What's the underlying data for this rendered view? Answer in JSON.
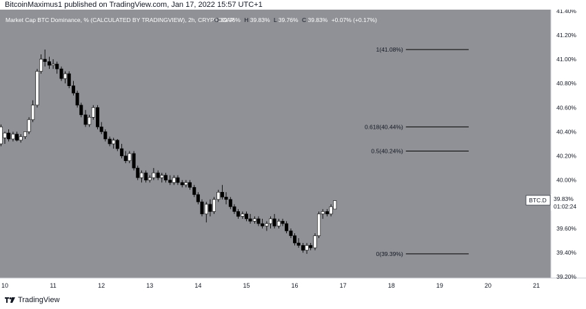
{
  "header": {
    "publish_line": "BitcoinMaximus1 published on TradingView.com, Jan 17, 2022 15:57 UTC+1",
    "symbol_title": "Market Cap BTC Dominance, % (CALCULATED BY TRADINGVIEW), 2h, CRYPTOCAP",
    "ohlc": [
      {
        "label": "O",
        "value": "39.76%"
      },
      {
        "label": "H",
        "value": "39.83%"
      },
      {
        "label": "L",
        "value": "39.76%"
      },
      {
        "label": "C",
        "value": "39.83%"
      }
    ],
    "change": "+0.07% (+0.17%)"
  },
  "footer": {
    "logo_text": "TradingView"
  },
  "price_tag": {
    "label": "BTC.D",
    "price": "39.83%",
    "countdown": "01:02:24"
  },
  "colors": {
    "background": "#8f9196",
    "axis_background": "#ffffff",
    "candle_up": "#ffffff",
    "candle_down": "#000000",
    "fib_line": "#000000",
    "axis_text": "#131722",
    "title_text": "#ffffff"
  },
  "chart_data": {
    "type": "candlestick",
    "x_tick_labels": [
      "10",
      "11",
      "12",
      "13",
      "14",
      "15",
      "16",
      "17",
      "18",
      "19",
      "20",
      "21"
    ],
    "y_tick_labels": [
      "39.20%",
      "39.40%",
      "39.60%",
      "39.80%",
      "40.00%",
      "40.20%",
      "40.40%",
      "40.60%",
      "40.80%",
      "41.00%",
      "41.20%",
      "41.40%"
    ],
    "ylim": [
      39.19,
      41.41
    ],
    "xlim": [
      9.9,
      21.3
    ],
    "fib_levels": [
      {
        "label": "1(41.08%)",
        "value": 41.08
      },
      {
        "label": "0.618(40.44%)",
        "value": 40.44
      },
      {
        "label": "0.5(40.24%)",
        "value": 40.24
      },
      {
        "label": "0(39.39%)",
        "value": 39.39
      }
    ],
    "fib_x_range": [
      18.3,
      19.6
    ],
    "candles": [
      {
        "x": 9.92,
        "o": 40.3,
        "h": 40.46,
        "l": 40.28,
        "c": 40.44
      },
      {
        "x": 10.0,
        "o": 40.35,
        "h": 40.4,
        "l": 40.3,
        "c": 40.39
      },
      {
        "x": 10.08,
        "o": 40.39,
        "h": 40.42,
        "l": 40.32,
        "c": 40.34
      },
      {
        "x": 10.17,
        "o": 40.34,
        "h": 40.4,
        "l": 40.32,
        "c": 40.38
      },
      {
        "x": 10.25,
        "o": 40.38,
        "h": 40.4,
        "l": 40.32,
        "c": 40.33
      },
      {
        "x": 10.33,
        "o": 40.33,
        "h": 40.38,
        "l": 40.31,
        "c": 40.36
      },
      {
        "x": 10.42,
        "o": 40.36,
        "h": 40.4,
        "l": 40.34,
        "c": 40.4
      },
      {
        "x": 10.5,
        "o": 40.4,
        "h": 40.52,
        "l": 40.38,
        "c": 40.5
      },
      {
        "x": 10.58,
        "o": 40.5,
        "h": 40.66,
        "l": 40.48,
        "c": 40.62
      },
      {
        "x": 10.67,
        "o": 40.62,
        "h": 40.92,
        "l": 40.6,
        "c": 40.9
      },
      {
        "x": 10.75,
        "o": 40.9,
        "h": 41.04,
        "l": 40.88,
        "c": 41.0
      },
      {
        "x": 10.83,
        "o": 41.0,
        "h": 41.08,
        "l": 40.94,
        "c": 40.98
      },
      {
        "x": 10.92,
        "o": 40.98,
        "h": 41.02,
        "l": 40.92,
        "c": 40.95
      },
      {
        "x": 11.0,
        "o": 40.95,
        "h": 41.0,
        "l": 40.92,
        "c": 40.96
      },
      {
        "x": 11.08,
        "o": 40.96,
        "h": 40.98,
        "l": 40.88,
        "c": 40.92
      },
      {
        "x": 11.17,
        "o": 40.92,
        "h": 40.94,
        "l": 40.82,
        "c": 40.84
      },
      {
        "x": 11.25,
        "o": 40.84,
        "h": 40.9,
        "l": 40.8,
        "c": 40.88
      },
      {
        "x": 11.33,
        "o": 40.88,
        "h": 40.9,
        "l": 40.76,
        "c": 40.78
      },
      {
        "x": 11.42,
        "o": 40.78,
        "h": 40.82,
        "l": 40.7,
        "c": 40.72
      },
      {
        "x": 11.5,
        "o": 40.72,
        "h": 40.74,
        "l": 40.6,
        "c": 40.62
      },
      {
        "x": 11.58,
        "o": 40.62,
        "h": 40.64,
        "l": 40.52,
        "c": 40.54
      },
      {
        "x": 11.67,
        "o": 40.54,
        "h": 40.58,
        "l": 40.44,
        "c": 40.46
      },
      {
        "x": 11.75,
        "o": 40.46,
        "h": 40.54,
        "l": 40.44,
        "c": 40.52
      },
      {
        "x": 11.83,
        "o": 40.52,
        "h": 40.62,
        "l": 40.5,
        "c": 40.6
      },
      {
        "x": 11.92,
        "o": 40.6,
        "h": 40.62,
        "l": 40.42,
        "c": 40.44
      },
      {
        "x": 12.0,
        "o": 40.44,
        "h": 40.48,
        "l": 40.38,
        "c": 40.4
      },
      {
        "x": 12.08,
        "o": 40.4,
        "h": 40.42,
        "l": 40.32,
        "c": 40.34
      },
      {
        "x": 12.17,
        "o": 40.34,
        "h": 40.36,
        "l": 40.28,
        "c": 40.3
      },
      {
        "x": 12.25,
        "o": 40.3,
        "h": 40.35,
        "l": 40.26,
        "c": 40.33
      },
      {
        "x": 12.33,
        "o": 40.33,
        "h": 40.34,
        "l": 40.24,
        "c": 40.26
      },
      {
        "x": 12.42,
        "o": 40.26,
        "h": 40.3,
        "l": 40.18,
        "c": 40.2
      },
      {
        "x": 12.5,
        "o": 40.2,
        "h": 40.24,
        "l": 40.14,
        "c": 40.16
      },
      {
        "x": 12.58,
        "o": 40.16,
        "h": 40.24,
        "l": 40.14,
        "c": 40.22
      },
      {
        "x": 12.67,
        "o": 40.22,
        "h": 40.24,
        "l": 40.08,
        "c": 40.1
      },
      {
        "x": 12.75,
        "o": 40.1,
        "h": 40.12,
        "l": 40.0,
        "c": 40.02
      },
      {
        "x": 12.83,
        "o": 40.02,
        "h": 40.08,
        "l": 39.98,
        "c": 40.06
      },
      {
        "x": 12.92,
        "o": 40.06,
        "h": 40.08,
        "l": 39.98,
        "c": 40.0
      },
      {
        "x": 13.0,
        "o": 40.0,
        "h": 40.04,
        "l": 39.98,
        "c": 40.02
      },
      {
        "x": 13.08,
        "o": 40.02,
        "h": 40.1,
        "l": 40.0,
        "c": 40.06
      },
      {
        "x": 13.17,
        "o": 40.06,
        "h": 40.08,
        "l": 40.0,
        "c": 40.02
      },
      {
        "x": 13.25,
        "o": 40.02,
        "h": 40.06,
        "l": 39.98,
        "c": 40.04
      },
      {
        "x": 13.33,
        "o": 40.04,
        "h": 40.06,
        "l": 39.98,
        "c": 40.0
      },
      {
        "x": 13.42,
        "o": 40.0,
        "h": 40.04,
        "l": 39.96,
        "c": 39.98
      },
      {
        "x": 13.5,
        "o": 39.98,
        "h": 40.04,
        "l": 39.96,
        "c": 40.02
      },
      {
        "x": 13.58,
        "o": 40.02,
        "h": 40.04,
        "l": 39.96,
        "c": 39.98
      },
      {
        "x": 13.67,
        "o": 39.98,
        "h": 40.0,
        "l": 39.94,
        "c": 39.96
      },
      {
        "x": 13.75,
        "o": 39.96,
        "h": 40.0,
        "l": 39.94,
        "c": 39.98
      },
      {
        "x": 13.83,
        "o": 39.98,
        "h": 40.0,
        "l": 39.92,
        "c": 39.94
      },
      {
        "x": 13.92,
        "o": 39.94,
        "h": 39.96,
        "l": 39.86,
        "c": 39.88
      },
      {
        "x": 14.0,
        "o": 39.88,
        "h": 39.9,
        "l": 39.8,
        "c": 39.82
      },
      {
        "x": 14.08,
        "o": 39.82,
        "h": 39.84,
        "l": 39.7,
        "c": 39.72
      },
      {
        "x": 14.17,
        "o": 39.72,
        "h": 39.82,
        "l": 39.65,
        "c": 39.8
      },
      {
        "x": 14.25,
        "o": 39.8,
        "h": 39.84,
        "l": 39.7,
        "c": 39.74
      },
      {
        "x": 14.33,
        "o": 39.74,
        "h": 39.86,
        "l": 39.72,
        "c": 39.84
      },
      {
        "x": 14.42,
        "o": 39.84,
        "h": 39.92,
        "l": 39.82,
        "c": 39.9
      },
      {
        "x": 14.5,
        "o": 39.9,
        "h": 39.96,
        "l": 39.84,
        "c": 39.86
      },
      {
        "x": 14.58,
        "o": 39.86,
        "h": 39.9,
        "l": 39.8,
        "c": 39.84
      },
      {
        "x": 14.67,
        "o": 39.84,
        "h": 39.86,
        "l": 39.76,
        "c": 39.78
      },
      {
        "x": 14.75,
        "o": 39.78,
        "h": 39.8,
        "l": 39.72,
        "c": 39.74
      },
      {
        "x": 14.83,
        "o": 39.74,
        "h": 39.76,
        "l": 39.68,
        "c": 39.7
      },
      {
        "x": 14.92,
        "o": 39.7,
        "h": 39.74,
        "l": 39.68,
        "c": 39.72
      },
      {
        "x": 15.0,
        "o": 39.72,
        "h": 39.74,
        "l": 39.66,
        "c": 39.68
      },
      {
        "x": 15.08,
        "o": 39.68,
        "h": 39.72,
        "l": 39.64,
        "c": 39.66
      },
      {
        "x": 15.17,
        "o": 39.66,
        "h": 39.7,
        "l": 39.64,
        "c": 39.68
      },
      {
        "x": 15.25,
        "o": 39.68,
        "h": 39.7,
        "l": 39.62,
        "c": 39.64
      },
      {
        "x": 15.33,
        "o": 39.64,
        "h": 39.68,
        "l": 39.6,
        "c": 39.62
      },
      {
        "x": 15.42,
        "o": 39.62,
        "h": 39.66,
        "l": 39.58,
        "c": 39.64
      },
      {
        "x": 15.5,
        "o": 39.64,
        "h": 39.7,
        "l": 39.6,
        "c": 39.68
      },
      {
        "x": 15.58,
        "o": 39.68,
        "h": 39.72,
        "l": 39.6,
        "c": 39.62
      },
      {
        "x": 15.67,
        "o": 39.62,
        "h": 39.68,
        "l": 39.6,
        "c": 39.66
      },
      {
        "x": 15.75,
        "o": 39.66,
        "h": 39.68,
        "l": 39.62,
        "c": 39.64
      },
      {
        "x": 15.83,
        "o": 39.64,
        "h": 39.66,
        "l": 39.56,
        "c": 39.58
      },
      {
        "x": 15.92,
        "o": 39.58,
        "h": 39.6,
        "l": 39.52,
        "c": 39.54
      },
      {
        "x": 16.0,
        "o": 39.54,
        "h": 39.56,
        "l": 39.46,
        "c": 39.48
      },
      {
        "x": 16.08,
        "o": 39.48,
        "h": 39.52,
        "l": 39.44,
        "c": 39.46
      },
      {
        "x": 16.17,
        "o": 39.46,
        "h": 39.48,
        "l": 39.4,
        "c": 39.42
      },
      {
        "x": 16.25,
        "o": 39.42,
        "h": 39.48,
        "l": 39.39,
        "c": 39.46
      },
      {
        "x": 16.33,
        "o": 39.46,
        "h": 39.48,
        "l": 39.42,
        "c": 39.44
      },
      {
        "x": 16.42,
        "o": 39.44,
        "h": 39.56,
        "l": 39.42,
        "c": 39.54
      },
      {
        "x": 16.5,
        "o": 39.54,
        "h": 39.74,
        "l": 39.52,
        "c": 39.72
      },
      {
        "x": 16.58,
        "o": 39.72,
        "h": 39.76,
        "l": 39.68,
        "c": 39.74
      },
      {
        "x": 16.67,
        "o": 39.74,
        "h": 39.76,
        "l": 39.7,
        "c": 39.72
      },
      {
        "x": 16.75,
        "o": 39.72,
        "h": 39.8,
        "l": 39.7,
        "c": 39.78
      },
      {
        "x": 16.83,
        "o": 39.76,
        "h": 39.83,
        "l": 39.76,
        "c": 39.83
      }
    ]
  }
}
